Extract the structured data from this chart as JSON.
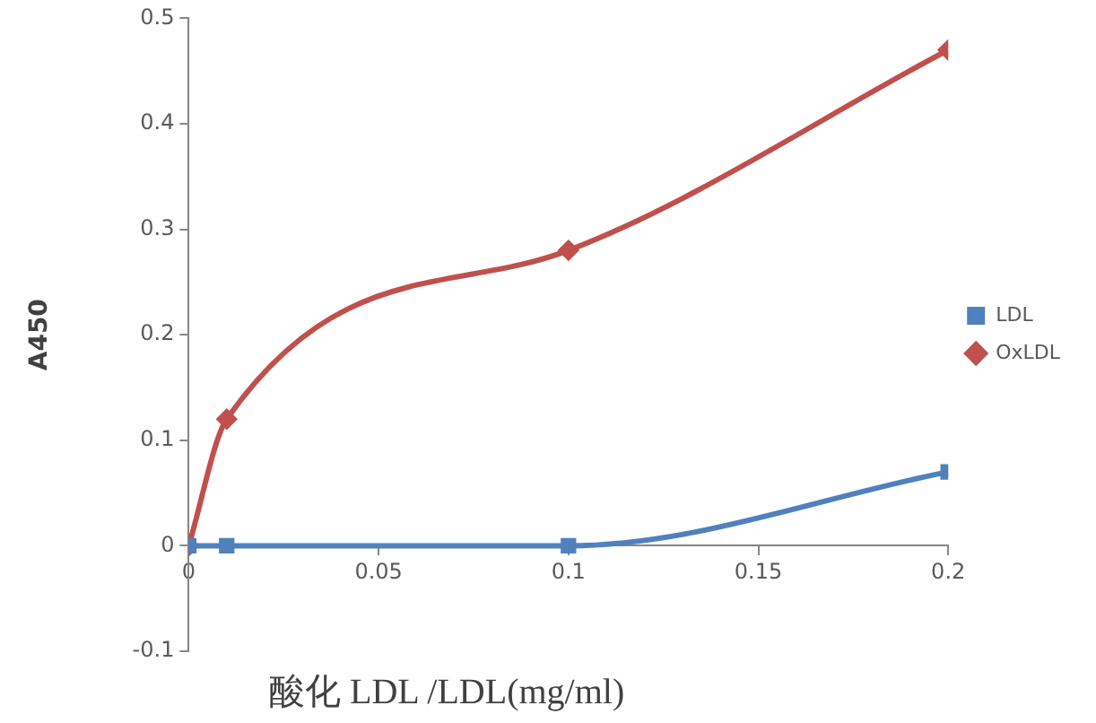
{
  "chart_data": {
    "type": "line",
    "xlabel": "酸化 LDL /LDL(mg/ml)",
    "ylabel": "A450",
    "x": [
      0,
      0.01,
      0.1,
      0.2
    ],
    "series": [
      {
        "name": "LDL",
        "color": "#4f81bd",
        "values": [
          0,
          0,
          0,
          0.07
        ],
        "marker": "square"
      },
      {
        "name": "OxLDL",
        "color": "#c0504d",
        "values": [
          0,
          0.12,
          0.28,
          0.47
        ],
        "marker": "diamond"
      }
    ],
    "xlim": [
      0,
      0.2
    ],
    "xticks": [
      0,
      0.05,
      0.1,
      0.15,
      0.2
    ],
    "ylim": [
      -0.1,
      0.5
    ],
    "yticks": [
      -0.1,
      0,
      0.1,
      0.2,
      0.3,
      0.4,
      0.5
    ],
    "grid": false,
    "legend": "right"
  }
}
